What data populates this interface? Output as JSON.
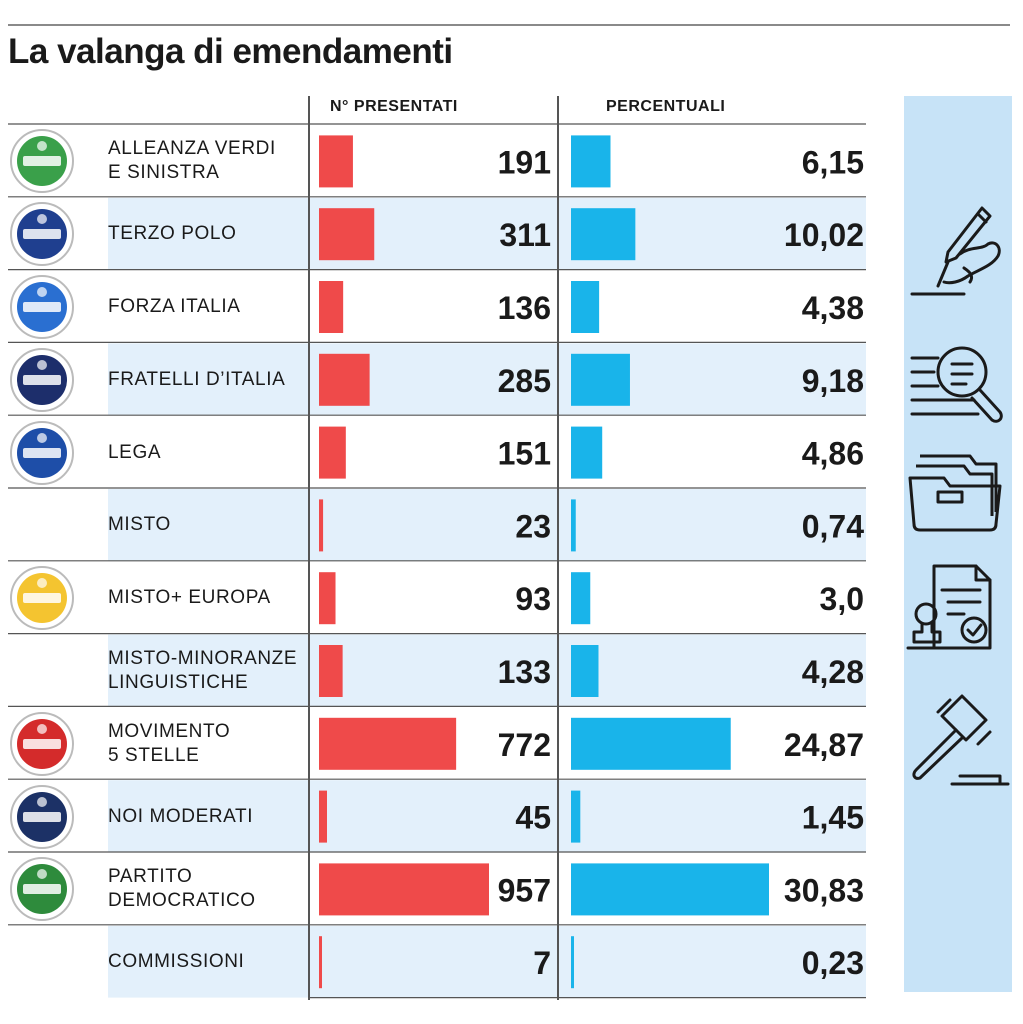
{
  "title": "La valanga di emendamenti",
  "headers": {
    "count": "N° PRESENTATI",
    "percent": "PERCENTUALI"
  },
  "colors": {
    "count_bar": "#ef4a4a",
    "percent_bar": "#19b4ea",
    "band": "#e3f0fb",
    "panel": "#c7e3f7"
  },
  "side_icons": [
    "pen-signing-icon",
    "document-search-icon",
    "folder-icon",
    "certificate-stamp-icon",
    "gavel-icon"
  ],
  "chart_data": {
    "type": "bar",
    "title": "La valanga di emendamenti",
    "categories": [
      "ALLEANZA VERDI E SINISTRA",
      "TERZO POLO",
      "FORZA ITALIA",
      "FRATELLI D’ITALIA",
      "LEGA",
      "MISTO",
      "MISTO+ EUROPA",
      "MISTO-MINORANZE LINGUISTICHE",
      "MOVIMENTO 5 STELLE",
      "NOI MODERATI",
      "PARTITO DEMOCRATICO",
      "COMMISSIONI"
    ],
    "series": [
      {
        "name": "N° PRESENTATI",
        "values": [
          191,
          311,
          136,
          285,
          151,
          23,
          93,
          133,
          772,
          45,
          957,
          7
        ]
      },
      {
        "name": "PERCENTUALI",
        "values": [
          6.15,
          10.02,
          4.38,
          9.18,
          4.86,
          0.74,
          3.0,
          4.28,
          24.87,
          1.45,
          30.83,
          0.23
        ],
        "labels": [
          "6,15",
          "10,02",
          "4,38",
          "9,18",
          "4,86",
          "0,74",
          "3,0",
          "4,28",
          "24,87",
          "1,45",
          "30,83",
          "0,23"
        ]
      }
    ],
    "xlabel": "",
    "ylabel": ""
  },
  "rows": [
    {
      "label_lines": [
        "ALLEANZA VERDI",
        "E SINISTRA"
      ],
      "logo": "avs-logo",
      "logo_color": "#3aa04a"
    },
    {
      "label_lines": [
        "TERZO POLO"
      ],
      "logo": "terzo-polo-logo",
      "logo_color": "#1f3f8f"
    },
    {
      "label_lines": [
        "FORZA ITALIA"
      ],
      "logo": "forza-italia-logo",
      "logo_color": "#2a6fd1"
    },
    {
      "label_lines": [
        "FRATELLI D’ITALIA"
      ],
      "logo": "fratelli-italia-logo",
      "logo_color": "#1d2e6b"
    },
    {
      "label_lines": [
        "LEGA"
      ],
      "logo": "lega-logo",
      "logo_color": "#1e4ea8"
    },
    {
      "label_lines": [
        "MISTO"
      ],
      "logo": "",
      "logo_color": ""
    },
    {
      "label_lines": [
        "MISTO+ EUROPA"
      ],
      "logo": "piu-europa-logo",
      "logo_color": "#f4c430"
    },
    {
      "label_lines": [
        "MISTO-MINORANZE",
        "LINGUISTICHE"
      ],
      "logo": "",
      "logo_color": ""
    },
    {
      "label_lines": [
        "MOVIMENTO",
        "5 STELLE"
      ],
      "logo": "m5s-logo",
      "logo_color": "#d42b2b"
    },
    {
      "label_lines": [
        "NOI MODERATI"
      ],
      "logo": "noi-moderati-logo",
      "logo_color": "#1c3166"
    },
    {
      "label_lines": [
        "PARTITO",
        "DEMOCRATICO"
      ],
      "logo": "pd-logo",
      "logo_color": "#2e8b3c"
    },
    {
      "label_lines": [
        "COMMISSIONI"
      ],
      "logo": "",
      "logo_color": ""
    }
  ]
}
